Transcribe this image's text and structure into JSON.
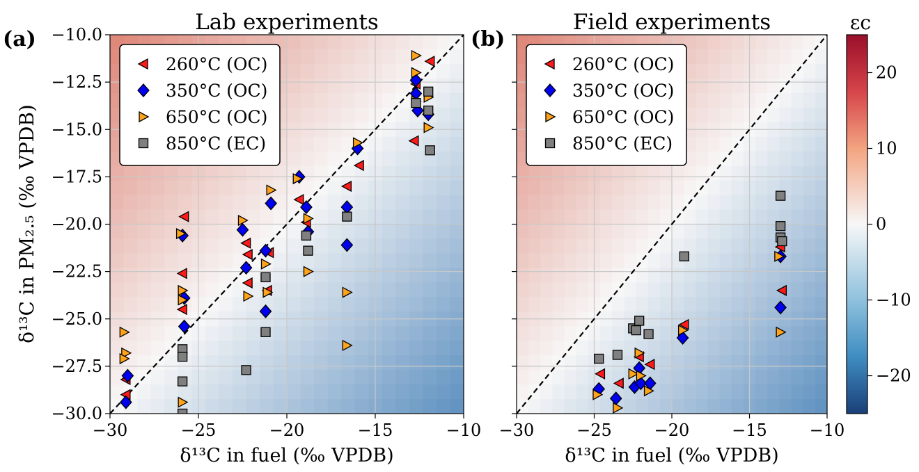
{
  "figure": {
    "ylabel": "δ¹³C in PM₂.₅ (‰ VPDB)",
    "colorbar_label": "εc",
    "colorbar_ticks": [
      "20",
      "10",
      "0",
      "−10",
      "−20"
    ],
    "colorbar_tick_values": [
      20,
      10,
      0,
      -10,
      -20
    ],
    "colorbar_range": [
      -25,
      25
    ],
    "colors": {
      "positive": "#b2182b",
      "neutral": "#f7f7f7",
      "negative": "#2166ac",
      "marker_260": "#ff1a1a",
      "marker_350": "#0000ee",
      "marker_650": "#ffa31a",
      "marker_850": "#808080"
    }
  },
  "chart_data": [
    {
      "type": "scatter",
      "panel_label": "(a)",
      "title": "Lab experiments",
      "xlabel": "δ¹³C in fuel (‰ VPDB)",
      "ylabel": "δ¹³C in PM₂.₅ (‰ VPDB)",
      "xlim": [
        -30,
        -10
      ],
      "ylim": [
        -30,
        -10
      ],
      "xticks": [
        "−30",
        "−25",
        "−20",
        "−15",
        "−10"
      ],
      "xtick_values": [
        -30,
        -25,
        -20,
        -15,
        -10
      ],
      "yticks": [
        "−10.0",
        "−12.5",
        "−15.0",
        "−17.5",
        "−20.0",
        "−22.5",
        "−25.0",
        "−27.5",
        "−30.0"
      ],
      "ytick_values": [
        -10,
        -12.5,
        -15,
        -17.5,
        -20,
        -22.5,
        -25,
        -27.5,
        -30
      ],
      "grid": true,
      "one_to_one_line": true,
      "legend_position": "top-left",
      "series": [
        {
          "name": "260°C (OC)",
          "marker": "triangle-left",
          "color": "#ff1a1a",
          "x": [
            -29.1,
            -29.1,
            -25.8,
            -25.9,
            -25.9,
            -22.3,
            -22.2,
            -22.2,
            -21.1,
            -21.0,
            -19.3,
            -18.9,
            -16.6,
            -15.9,
            -12.8,
            -12.7,
            -11.9
          ],
          "y": [
            -28.2,
            -29.0,
            -19.6,
            -22.6,
            -24.5,
            -21.0,
            -21.6,
            -23.1,
            -23.5,
            -21.5,
            -18.7,
            -19.9,
            -18.0,
            -16.9,
            -15.6,
            -12.6,
            -11.4
          ]
        },
        {
          "name": "350°C (OC)",
          "marker": "diamond",
          "color": "#0000ee",
          "x": [
            -29.0,
            -29.1,
            -25.9,
            -25.8,
            -25.8,
            -22.5,
            -22.3,
            -21.2,
            -21.2,
            -20.9,
            -19.3,
            -18.9,
            -18.8,
            -16.6,
            -16.6,
            -16.0,
            -12.7,
            -12.7,
            -12.6,
            -12.0
          ],
          "y": [
            -28.0,
            -29.4,
            -20.6,
            -23.9,
            -25.4,
            -20.3,
            -22.3,
            -21.4,
            -24.6,
            -18.9,
            -17.5,
            -19.1,
            -20.4,
            -19.1,
            -21.1,
            -16.0,
            -12.4,
            -13.1,
            -14.0,
            -14.2
          ]
        },
        {
          "name": "650°C (OC)",
          "marker": "triangle-right",
          "color": "#ffa31a",
          "x": [
            -29.2,
            -29.1,
            -29.2,
            -26.0,
            -25.9,
            -25.9,
            -25.9,
            -22.5,
            -22.2,
            -21.2,
            -21.1,
            -20.9,
            -19.4,
            -18.8,
            -18.8,
            -16.6,
            -16.6,
            -16.0,
            -12.7,
            -12.7,
            -12.7,
            -12.0,
            -12.0
          ],
          "y": [
            -25.7,
            -26.8,
            -27.1,
            -20.5,
            -23.5,
            -24.0,
            -29.4,
            -19.8,
            -23.8,
            -22.1,
            -23.6,
            -18.2,
            -17.6,
            -19.7,
            -22.5,
            -23.6,
            -26.4,
            -15.7,
            -11.1,
            -12.0,
            -13.5,
            -13.3,
            -14.9
          ]
        },
        {
          "name": "850°C (EC)",
          "marker": "square",
          "color": "#808080",
          "x": [
            -25.9,
            -25.9,
            -25.9,
            -25.9,
            -22.3,
            -21.2,
            -21.2,
            -18.9,
            -18.8,
            -16.6,
            -12.7,
            -12.0,
            -12.0,
            -11.9
          ],
          "y": [
            -26.6,
            -27.0,
            -28.3,
            -30.0,
            -27.7,
            -22.8,
            -25.7,
            -20.6,
            -21.4,
            -19.6,
            -13.6,
            -13.0,
            -14.0,
            -16.1
          ]
        }
      ]
    },
    {
      "type": "scatter",
      "panel_label": "(b)",
      "title": "Field experiments",
      "xlabel": "δ¹³C in fuel (‰ VPDB)",
      "ylabel": "",
      "xlim": [
        -30,
        -10
      ],
      "ylim": [
        -30,
        -10
      ],
      "xticks": [
        "−30",
        "−25",
        "−20",
        "−15",
        "−10"
      ],
      "xtick_values": [
        -30,
        -25,
        -20,
        -15,
        -10
      ],
      "ytick_values": [
        -10,
        -12.5,
        -15,
        -17.5,
        -20,
        -22.5,
        -25,
        -27.5,
        -30
      ],
      "grid": true,
      "one_to_one_line": true,
      "legend_position": "top-left",
      "series": [
        {
          "name": "260°C (OC)",
          "marker": "triangle-left",
          "color": "#ff1a1a",
          "x": [
            -24.6,
            -23.4,
            -22.1,
            -21.4,
            -19.2,
            -13.0,
            -12.9
          ],
          "y": [
            -27.9,
            -28.4,
            -27.0,
            -27.4,
            -25.3,
            -21.2,
            -23.5
          ]
        },
        {
          "name": "350°C (OC)",
          "marker": "diamond",
          "color": "#0000ee",
          "x": [
            -24.7,
            -23.6,
            -22.4,
            -22.1,
            -22.0,
            -21.4,
            -19.3,
            -13.0,
            -13.0
          ],
          "y": [
            -28.7,
            -29.2,
            -28.6,
            -27.6,
            -28.4,
            -28.4,
            -26.0,
            -21.7,
            -24.4
          ]
        },
        {
          "name": "650°C (OC)",
          "marker": "triangle-right",
          "color": "#ffa31a",
          "x": [
            -24.8,
            -23.5,
            -22.5,
            -22.1,
            -22.0,
            -21.5,
            -19.3,
            -13.1,
            -13.0
          ],
          "y": [
            -29.0,
            -29.7,
            -27.9,
            -26.8,
            -28.0,
            -28.8,
            -25.6,
            -21.7,
            -25.7
          ]
        },
        {
          "name": "850°C (EC)",
          "marker": "square",
          "color": "#808080",
          "x": [
            -24.7,
            -23.5,
            -22.5,
            -22.3,
            -22.1,
            -21.5,
            -19.2,
            -13.0,
            -13.0,
            -13.0,
            -12.9
          ],
          "y": [
            -27.1,
            -26.9,
            -25.5,
            -25.6,
            -25.1,
            -25.8,
            -21.7,
            -18.5,
            -20.1,
            -20.7,
            -20.9
          ]
        }
      ]
    }
  ]
}
